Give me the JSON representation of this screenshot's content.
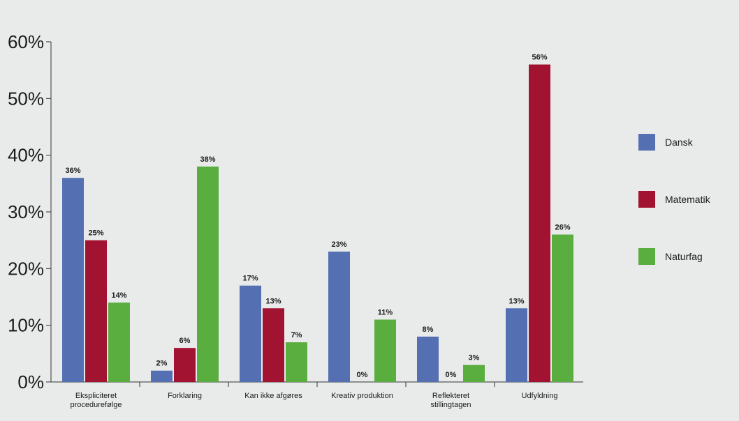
{
  "chart_data": {
    "type": "bar",
    "categories": [
      [
        "Ekspliciteret",
        "procedurefølge"
      ],
      [
        "Forklaring"
      ],
      [
        "Kan ikke afgøres"
      ],
      [
        "Kreativ produktion"
      ],
      [
        "Reflekteret",
        "stillingtagen"
      ],
      [
        "Udfyldning"
      ]
    ],
    "series": [
      {
        "name": "Dansk",
        "color": "#5470b3",
        "values": [
          36,
          2,
          17,
          23,
          8,
          13
        ],
        "labels": [
          "36%",
          "2%",
          "17%",
          "23%",
          "8%",
          "13%"
        ]
      },
      {
        "name": "Matematik",
        "color": "#a21331",
        "values": [
          25,
          6,
          13,
          0,
          0,
          56
        ],
        "labels": [
          "25%",
          "6%",
          "13%",
          "0%",
          "0%",
          "56%"
        ]
      },
      {
        "name": "Naturfag",
        "color": "#5aae3f",
        "values": [
          14,
          38,
          7,
          11,
          3,
          26
        ],
        "labels": [
          "14%",
          "38%",
          "7%",
          "11%",
          "3%",
          "26%"
        ]
      }
    ],
    "ylim": [
      0,
      60
    ],
    "yticks": [
      0,
      10,
      20,
      30,
      40,
      50,
      60
    ],
    "ytick_labels": [
      "0%",
      "10%",
      "20%",
      "30%",
      "40%",
      "50%",
      "60%"
    ],
    "title": "",
    "xlabel": "",
    "ylabel": "",
    "legend_position": "right",
    "grid": false
  }
}
